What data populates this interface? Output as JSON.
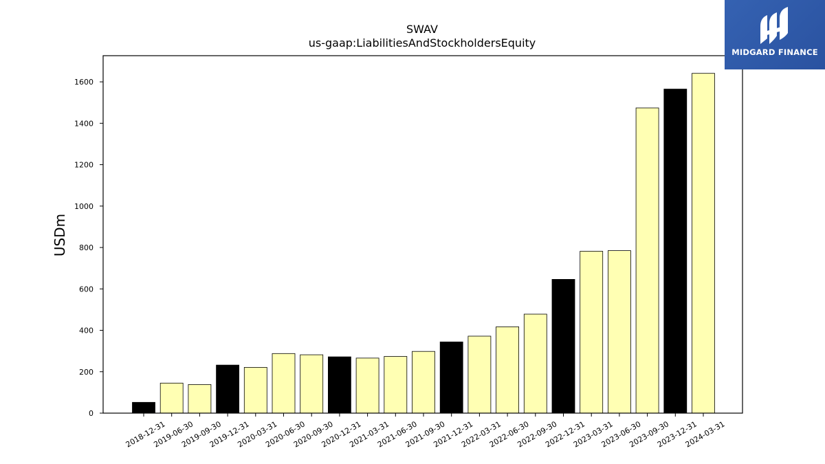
{
  "brand": {
    "name": "MIDGARD FINANCE",
    "bg_color": "#2f5aa8"
  },
  "chart_data": {
    "type": "bar",
    "title": "SWAV",
    "subtitle": "us-gaap:LiabilitiesAndStockholdersEquity",
    "ylabel": "USDm",
    "xlabel": "",
    "ylim": [
      0,
      1720
    ],
    "yticks": [
      0,
      200,
      400,
      600,
      800,
      1000,
      1200,
      1400,
      1600
    ],
    "categories": [
      "2018-12-31",
      "2019-06-30",
      "2019-09-30",
      "2019-12-31",
      "2020-03-31",
      "2020-06-30",
      "2020-09-30",
      "2020-12-31",
      "2021-03-31",
      "2021-06-30",
      "2021-09-30",
      "2021-12-31",
      "2022-03-31",
      "2022-06-30",
      "2022-09-30",
      "2022-12-31",
      "2023-03-31",
      "2023-06-30",
      "2023-09-30",
      "2023-12-31",
      "2024-03-31"
    ],
    "values": [
      52,
      145,
      138,
      232,
      221,
      288,
      282,
      272,
      266,
      274,
      298,
      344,
      372,
      417,
      478,
      646,
      782,
      785,
      1474,
      1565,
      1641
    ],
    "colors": {
      "year_end": "#000000",
      "quarter": "#ffffb3",
      "edge": "#000000"
    },
    "grid": false,
    "legend": "none"
  }
}
